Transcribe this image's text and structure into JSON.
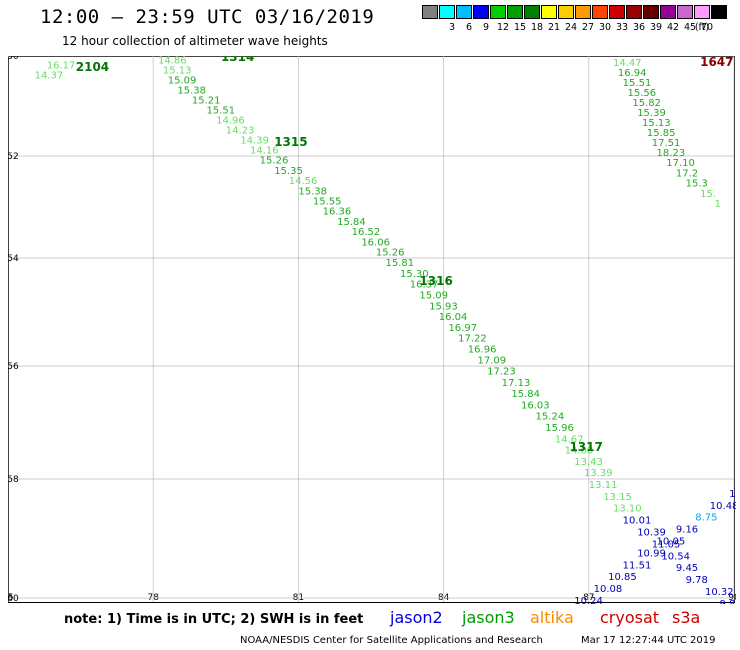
{
  "header": {
    "title": "12:00 – 23:59 UTC 03/16/2019",
    "subtitle": "12 hour collection of altimeter wave heights"
  },
  "scale": {
    "unit": "(ft)",
    "bins": [
      {
        "label": "",
        "color": "#808080"
      },
      {
        "label": "3",
        "color": "#00ffff"
      },
      {
        "label": "6",
        "color": "#00c0ff"
      },
      {
        "label": "9",
        "color": "#0000ff"
      },
      {
        "label": "12",
        "color": "#00d000"
      },
      {
        "label": "15",
        "color": "#00a000"
      },
      {
        "label": "18",
        "color": "#008000"
      },
      {
        "label": "21",
        "color": "#ffff00"
      },
      {
        "label": "24",
        "color": "#ffcc00"
      },
      {
        "label": "27",
        "color": "#ff9900"
      },
      {
        "label": "30",
        "color": "#ff4400"
      },
      {
        "label": "33",
        "color": "#cc0000"
      },
      {
        "label": "36",
        "color": "#990000"
      },
      {
        "label": "39",
        "color": "#660000"
      },
      {
        "label": "42",
        "color": "#990099"
      },
      {
        "label": "45",
        "color": "#cc66cc"
      },
      {
        "label": "70",
        "color": "#ff99ff"
      },
      {
        "label": "",
        "color": "#000000"
      }
    ]
  },
  "map": {
    "lon_ticks": [
      "75",
      "78",
      "81",
      "84",
      "87",
      "90"
    ],
    "lat_ticks": [
      "-50",
      "-52",
      "-54",
      "-56",
      "-58",
      "-60"
    ],
    "colors": {
      "j3light": "#66dd66",
      "j3dark": "#22aa22",
      "j2": "#0000bb",
      "light_blue": "#00aaee",
      "dark_red": "#8b0000",
      "time_green": "#007700",
      "grid": "#bbbbbb"
    },
    "track1_times": [
      {
        "label": "2104",
        "lon": 76.4,
        "lat": -50.3
      },
      {
        "label": "1314",
        "lon": 79.4,
        "lat": -50.1
      }
    ],
    "track1_labels": [
      {
        "lon": 75.8,
        "lat": -50.25,
        "text": "16.17",
        "c": "j3light"
      },
      {
        "lon": 75.55,
        "lat": -50.45,
        "text": "14.37",
        "c": "j3light"
      },
      {
        "lon": 78.1,
        "lat": -50.15,
        "text": "14.86",
        "c": "j3light"
      },
      {
        "lon": 78.2,
        "lat": -50.35,
        "text": "15.13",
        "c": "j3light"
      },
      {
        "lon": 78.3,
        "lat": -50.55,
        "text": "15.09",
        "c": "j3dark"
      },
      {
        "lon": 78.5,
        "lat": -50.75,
        "text": "15.38",
        "c": "j3dark"
      },
      {
        "lon": 78.8,
        "lat": -50.95,
        "text": "15.21",
        "c": "j3dark"
      },
      {
        "lon": 79.1,
        "lat": -51.15,
        "text": "15.51",
        "c": "j3dark"
      },
      {
        "lon": 79.3,
        "lat": -51.35,
        "text": "14.96",
        "c": "j3light"
      },
      {
        "lon": 79.5,
        "lat": -51.55,
        "text": "14.23",
        "c": "j3light"
      },
      {
        "lon": 79.8,
        "lat": -51.75,
        "text": "14.39",
        "c": "j3light"
      },
      {
        "lon": 80.0,
        "lat": -51.95,
        "text": "14.16",
        "c": "j3light"
      },
      {
        "lon": 80.2,
        "lat": -52.15,
        "text": "15.26",
        "c": "j3dark"
      },
      {
        "lon": 80.5,
        "lat": -52.35,
        "text": "15.35",
        "c": "j3dark"
      },
      {
        "lon": 80.8,
        "lat": -52.55,
        "text": "14.56",
        "c": "j3light"
      },
      {
        "lon": 81.0,
        "lat": -52.75,
        "text": "15.38",
        "c": "j3dark"
      },
      {
        "lon": 81.3,
        "lat": -52.95,
        "text": "15.55",
        "c": "j3dark"
      },
      {
        "lon": 81.5,
        "lat": -53.15,
        "text": "16.36",
        "c": "j3dark"
      },
      {
        "lon": 81.8,
        "lat": -53.35,
        "text": "15.84",
        "c": "j3dark"
      },
      {
        "lon": 82.1,
        "lat": -53.55,
        "text": "16.52",
        "c": "j3dark"
      },
      {
        "lon": 82.3,
        "lat": -53.75,
        "text": "16.06",
        "c": "j3dark"
      },
      {
        "lon": 82.6,
        "lat": -53.95,
        "text": "15.26",
        "c": "j3dark"
      },
      {
        "lon": 82.8,
        "lat": -54.15,
        "text": "15.81",
        "c": "j3dark"
      },
      {
        "lon": 83.1,
        "lat": -54.35,
        "text": "15.30",
        "c": "j3dark"
      },
      {
        "lon": 83.3,
        "lat": -54.55,
        "text": "16.37",
        "c": "j3dark"
      },
      {
        "lon": 83.5,
        "lat": -54.75,
        "text": "15.09",
        "c": "j3dark"
      },
      {
        "lon": 83.7,
        "lat": -54.95,
        "text": "15.93",
        "c": "j3dark"
      },
      {
        "lon": 83.9,
        "lat": -55.15,
        "text": "16.04",
        "c": "j3dark"
      },
      {
        "lon": 84.1,
        "lat": -55.35,
        "text": "16.97",
        "c": "j3dark"
      },
      {
        "lon": 84.3,
        "lat": -55.55,
        "text": "17.22",
        "c": "j3dark"
      },
      {
        "lon": 84.5,
        "lat": -55.75,
        "text": "16.96",
        "c": "j3dark"
      },
      {
        "lon": 84.7,
        "lat": -55.95,
        "text": "17.09",
        "c": "j3dark"
      },
      {
        "lon": 84.9,
        "lat": -56.15,
        "text": "17.23",
        "c": "j3dark"
      },
      {
        "lon": 85.2,
        "lat": -56.35,
        "text": "17.13",
        "c": "j3dark"
      },
      {
        "lon": 85.4,
        "lat": -56.55,
        "text": "15.84",
        "c": "j3dark"
      },
      {
        "lon": 85.6,
        "lat": -56.75,
        "text": "16.03",
        "c": "j3dark"
      },
      {
        "lon": 85.9,
        "lat": -56.95,
        "text": "15.24",
        "c": "j3dark"
      },
      {
        "lon": 86.1,
        "lat": -57.15,
        "text": "15.96",
        "c": "j3dark"
      },
      {
        "lon": 86.3,
        "lat": -57.35,
        "text": "14.67",
        "c": "j3light"
      },
      {
        "lon": 86.5,
        "lat": -57.55,
        "text": "14.08",
        "c": "j3light"
      },
      {
        "lon": 86.7,
        "lat": -57.75,
        "text": "13.43",
        "c": "j3light"
      },
      {
        "lon": 86.9,
        "lat": -57.95,
        "text": "13.39",
        "c": "j3light"
      },
      {
        "lon": 87.0,
        "lat": -58.15,
        "text": "13.11",
        "c": "j3light"
      },
      {
        "lon": 87.3,
        "lat": -58.35,
        "text": "13.15",
        "c": "j3light"
      },
      {
        "lon": 87.5,
        "lat": -58.55,
        "text": "13.10",
        "c": "j3light"
      },
      {
        "lon": 87.7,
        "lat": -58.75,
        "text": "10.01",
        "c": "j2"
      },
      {
        "lon": 88.0,
        "lat": -58.95,
        "text": "10.39",
        "c": "j2"
      },
      {
        "lon": 88.3,
        "lat": -59.15,
        "text": "11.05",
        "c": "j2"
      },
      {
        "lon": 88.5,
        "lat": -59.35,
        "text": "10.54",
        "c": "j2"
      },
      {
        "lon": 88.8,
        "lat": -59.55,
        "text": "9.45",
        "c": "j2"
      },
      {
        "lon": 89.0,
        "lat": -59.75,
        "text": "9.78",
        "c": "j2"
      },
      {
        "lon": 89.4,
        "lat": -59.95,
        "text": "10.32",
        "c": "j2"
      },
      {
        "lon": 89.7,
        "lat": -60.15,
        "text": "9.86",
        "c": "j2"
      },
      {
        "lon": 89.9,
        "lat": -60.35,
        "text": "9.",
        "c": "j2"
      }
    ],
    "track1_mid_times": [
      {
        "label": "1315",
        "lon": 80.5,
        "lat": -51.8
      },
      {
        "label": "1316",
        "lon": 83.5,
        "lat": -54.5
      },
      {
        "label": "1317",
        "lon": 86.6,
        "lat": -57.5
      }
    ],
    "track2_time": {
      "label": "1647",
      "lon": 89.3,
      "lat": -50.2
    },
    "track2_labels": [
      {
        "lon": 87.5,
        "lat": -50.2,
        "text": "14.47",
        "c": "j3light"
      },
      {
        "lon": 87.6,
        "lat": -50.4,
        "text": "16.94",
        "c": "j3dark"
      },
      {
        "lon": 87.7,
        "lat": -50.6,
        "text": "15.51",
        "c": "j3dark"
      },
      {
        "lon": 87.8,
        "lat": -50.8,
        "text": "15.56",
        "c": "j3dark"
      },
      {
        "lon": 87.9,
        "lat": -51.0,
        "text": "15.82",
        "c": "j3dark"
      },
      {
        "lon": 88.0,
        "lat": -51.2,
        "text": "15.39",
        "c": "j3dark"
      },
      {
        "lon": 88.1,
        "lat": -51.4,
        "text": "15.13",
        "c": "j3dark"
      },
      {
        "lon": 88.2,
        "lat": -51.6,
        "text": "15.85",
        "c": "j3dark"
      },
      {
        "lon": 88.3,
        "lat": -51.8,
        "text": "17.51",
        "c": "j3dark"
      },
      {
        "lon": 88.4,
        "lat": -52.0,
        "text": "18.23",
        "c": "j3dark"
      },
      {
        "lon": 88.6,
        "lat": -52.2,
        "text": "17.10",
        "c": "j3dark"
      },
      {
        "lon": 88.8,
        "lat": -52.4,
        "text": "17.2",
        "c": "j3dark"
      },
      {
        "lon": 89.0,
        "lat": -52.6,
        "text": "15.3",
        "c": "j3dark"
      },
      {
        "lon": 89.3,
        "lat": -52.8,
        "text": "15.",
        "c": "j3light"
      },
      {
        "lon": 89.6,
        "lat": -53.0,
        "text": "1",
        "c": "j3light"
      }
    ],
    "track3_time": {
      "label": "1908",
      "lon": 87.8,
      "lat": -60.6
    },
    "track3_labels": [
      {
        "lon": 89.9,
        "lat": -58.3,
        "text": "10",
        "c": "j2"
      },
      {
        "lon": 89.5,
        "lat": -58.5,
        "text": "10.48",
        "c": "j2"
      },
      {
        "lon": 89.2,
        "lat": -58.7,
        "text": "8.75",
        "c": "light_blue"
      },
      {
        "lon": 88.8,
        "lat": -58.9,
        "text": "9.16",
        "c": "j2"
      },
      {
        "lon": 88.4,
        "lat": -59.1,
        "text": "10.05",
        "c": "j2"
      },
      {
        "lon": 88.0,
        "lat": -59.3,
        "text": "10.99",
        "c": "j2"
      },
      {
        "lon": 87.7,
        "lat": -59.5,
        "text": "11.51",
        "c": "j2"
      },
      {
        "lon": 87.4,
        "lat": -59.7,
        "text": "10.85",
        "c": "j2"
      },
      {
        "lon": 87.1,
        "lat": -59.9,
        "text": "10.08",
        "c": "j2"
      },
      {
        "lon": 86.7,
        "lat": -60.1,
        "text": "10.24",
        "c": "j2"
      }
    ]
  },
  "footer": {
    "note": "note: 1) Time is in UTC; 2) SWH is in feet",
    "satellites": [
      {
        "label": "jason2",
        "color": "#0000dd"
      },
      {
        "label": "jason3",
        "color": "#009900"
      },
      {
        "label": "altika",
        "color": "#ff8800"
      },
      {
        "label": "cryosat",
        "color": "#cc0000"
      },
      {
        "label": "s3a",
        "color": "#cc0000"
      }
    ],
    "credit": "NOAA/NESDIS Center for Satellite Applications and Research",
    "timestamp": "Mar 17 12:27:44 UTC 2019"
  }
}
